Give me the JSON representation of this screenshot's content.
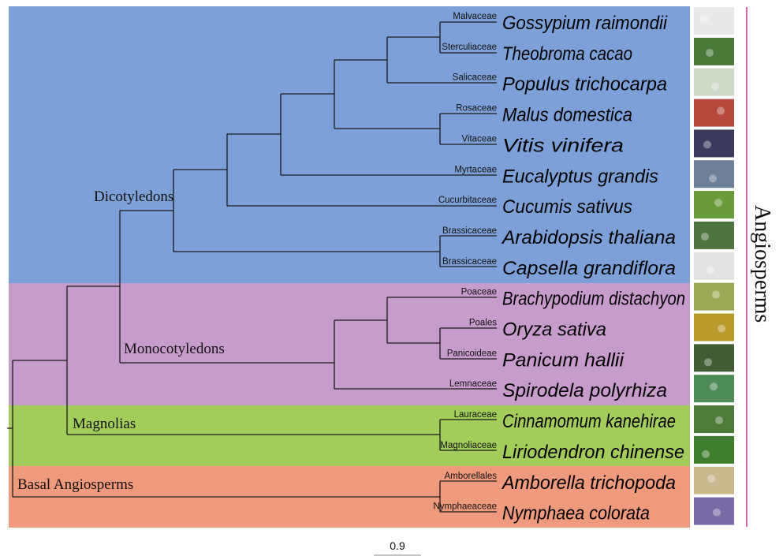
{
  "colors": {
    "dicots": "#7ea0d8",
    "monocots": "#c69ccb",
    "magnolias": "#a3cc5b",
    "basal": "#ef9a7d",
    "bracket": "#c8359d",
    "tree": "#1a1a1a"
  },
  "groups": {
    "dicots": "Dicotyledons",
    "monocots": "Monocotyledons",
    "magnolias": "Magnolias",
    "basal": "Basal Angiosperms"
  },
  "bracket_label": "Angiosperms",
  "scale_label": "0.9",
  "taxa": [
    {
      "family": "Malvaceae",
      "species": "Gossypium raimondii",
      "icon": "cotton-photo-icon"
    },
    {
      "family": "Sterculiaceae",
      "species": "Theobroma cacao",
      "icon": "cacao-photo-icon"
    },
    {
      "family": "Salicaceae",
      "species": "Populus trichocarpa",
      "icon": "poplar-photo-icon"
    },
    {
      "family": "Rosaceae",
      "species": "Malus domestica",
      "icon": "apple-photo-icon"
    },
    {
      "family": "Vitaceae",
      "species": "Vitis vinifera",
      "icon": "grape-photo-icon"
    },
    {
      "family": "Myrtaceae",
      "species": "Eucalyptus grandis",
      "icon": "eucalyptus-photo-icon"
    },
    {
      "family": "Cucurbitaceae",
      "species": "Cucumis sativus",
      "icon": "cucumber-photo-icon"
    },
    {
      "family": "Brassicaceae",
      "species": "Arabidopsis thaliana",
      "icon": "arabidopsis-photo-icon"
    },
    {
      "family": "Brassicaceae",
      "species": "Capsella grandiflora",
      "icon": "capsella-photo-icon"
    },
    {
      "family": "Poaceae",
      "species": "Brachypodium distachyon",
      "icon": "brachypodium-photo-icon"
    },
    {
      "family": "Poales",
      "species": "Oryza sativa",
      "icon": "rice-photo-icon"
    },
    {
      "family": "Panicoideae",
      "species": "Panicum hallii",
      "icon": "panicum-photo-icon"
    },
    {
      "family": "Lemnaceae",
      "species": "Spirodela polyrhiza",
      "icon": "duckweed-photo-icon"
    },
    {
      "family": "Lauraceae",
      "species": "Cinnamomum kanehirae",
      "icon": "cinnamomum-photo-icon"
    },
    {
      "family": "Magnoliaceae",
      "species": "Liriodendron chinense",
      "icon": "liriodendron-photo-icon"
    },
    {
      "family": "Amborellales",
      "species": "Amborella trichopoda",
      "icon": "amborella-photo-icon"
    },
    {
      "family": "Nymphaeaceae",
      "species": "Nymphaea colorata",
      "icon": "nymphaea-photo-icon"
    }
  ]
}
